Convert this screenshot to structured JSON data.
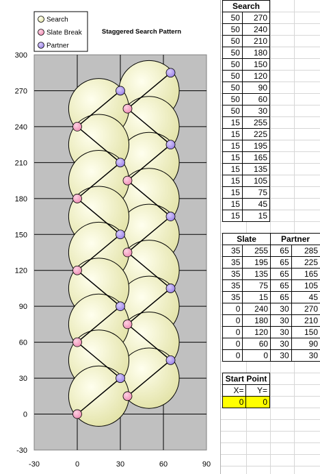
{
  "chart_data": {
    "type": "scatter",
    "title": "Staggered Search Pattern",
    "xlim": [
      -30,
      90
    ],
    "ylim": [
      -30,
      300
    ],
    "x_ticks": [
      "-30",
      "0",
      "30",
      "60",
      "90"
    ],
    "y_ticks": [
      "300",
      "270",
      "240",
      "210",
      "180",
      "150",
      "120",
      "90",
      "60",
      "30",
      "0",
      "-30"
    ],
    "legend": {
      "placement": "top-left",
      "entries": [
        "Search",
        "Slate Break",
        "Partner"
      ]
    },
    "search_radius": 21,
    "series": [
      {
        "name": "Search",
        "x": [
          50,
          50,
          50,
          50,
          50,
          50,
          50,
          50,
          50,
          15,
          15,
          15,
          15,
          15,
          15,
          15,
          15,
          15
        ],
        "y": [
          270,
          240,
          210,
          180,
          150,
          120,
          90,
          60,
          30,
          255,
          225,
          195,
          165,
          135,
          105,
          75,
          45,
          15
        ]
      },
      {
        "name": "Slate Break",
        "x": [
          35,
          35,
          35,
          35,
          35,
          0,
          0,
          0,
          0,
          0
        ],
        "y": [
          255,
          195,
          135,
          75,
          15,
          240,
          180,
          120,
          60,
          0
        ]
      },
      {
        "name": "Partner",
        "x": [
          65,
          65,
          65,
          65,
          65,
          30,
          30,
          30,
          30,
          30
        ],
        "y": [
          285,
          225,
          165,
          105,
          45,
          270,
          210,
          150,
          90,
          30
        ]
      }
    ],
    "colors": {
      "plot_bg": "#c0c0c0",
      "search": "#f6f6c4",
      "slate": "#f08cb4",
      "partner": "#9a80e6",
      "line": "#000000"
    }
  },
  "sheet": {
    "search_header": "Search",
    "search_rows": [
      [
        50,
        270
      ],
      [
        50,
        240
      ],
      [
        50,
        210
      ],
      [
        50,
        180
      ],
      [
        50,
        150
      ],
      [
        50,
        120
      ],
      [
        50,
        90
      ],
      [
        50,
        60
      ],
      [
        50,
        30
      ],
      [
        15,
        255
      ],
      [
        15,
        225
      ],
      [
        15,
        195
      ],
      [
        15,
        165
      ],
      [
        15,
        135
      ],
      [
        15,
        105
      ],
      [
        15,
        75
      ],
      [
        15,
        45
      ],
      [
        15,
        15
      ]
    ],
    "slate_header": "Slate",
    "partner_header": "Partner",
    "pair_rows": [
      [
        35,
        255,
        65,
        285
      ],
      [
        35,
        195,
        65,
        225
      ],
      [
        35,
        135,
        65,
        165
      ],
      [
        35,
        75,
        65,
        105
      ],
      [
        35,
        15,
        65,
        45
      ],
      [
        0,
        240,
        30,
        270
      ],
      [
        0,
        180,
        30,
        210
      ],
      [
        0,
        120,
        30,
        150
      ],
      [
        0,
        60,
        30,
        90
      ],
      [
        0,
        0,
        30,
        30
      ]
    ],
    "start_point": {
      "header": "Start Point",
      "x_label": "X=",
      "y_label": "Y=",
      "x_value": "0",
      "y_value": "0"
    }
  }
}
